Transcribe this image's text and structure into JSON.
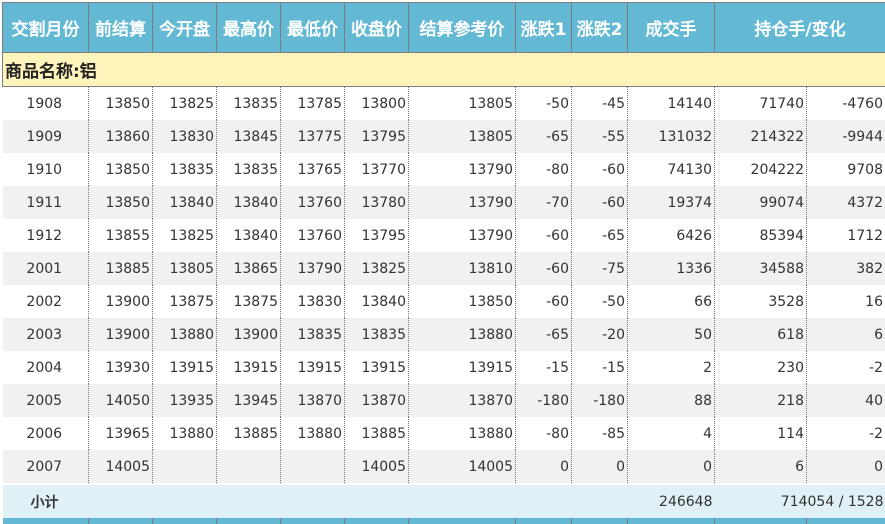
{
  "headers": [
    "交割月份",
    "前结算",
    "今开盘",
    "最高价",
    "最低价",
    "收盘价",
    "结算参考价",
    "涨跌1",
    "涨跌2",
    "成交手",
    "持仓手/变化"
  ],
  "product_label": "商品名称:铝",
  "rows": [
    [
      "1908",
      "13850",
      "13825",
      "13835",
      "13785",
      "13800",
      "13805",
      "-50",
      "-45",
      "14140",
      "71740",
      "-4760"
    ],
    [
      "1909",
      "13860",
      "13830",
      "13845",
      "13775",
      "13795",
      "13805",
      "-65",
      "-55",
      "131032",
      "214322",
      "-9944"
    ],
    [
      "1910",
      "13850",
      "13835",
      "13835",
      "13765",
      "13770",
      "13790",
      "-80",
      "-60",
      "74130",
      "204222",
      "9708"
    ],
    [
      "1911",
      "13850",
      "13840",
      "13840",
      "13760",
      "13780",
      "13790",
      "-70",
      "-60",
      "19374",
      "99074",
      "4372"
    ],
    [
      "1912",
      "13855",
      "13825",
      "13840",
      "13760",
      "13795",
      "13790",
      "-60",
      "-65",
      "6426",
      "85394",
      "1712"
    ],
    [
      "2001",
      "13885",
      "13805",
      "13865",
      "13790",
      "13825",
      "13810",
      "-60",
      "-75",
      "1336",
      "34588",
      "382"
    ],
    [
      "2002",
      "13900",
      "13875",
      "13875",
      "13830",
      "13840",
      "13850",
      "-60",
      "-50",
      "66",
      "3528",
      "16"
    ],
    [
      "2003",
      "13900",
      "13880",
      "13900",
      "13835",
      "13835",
      "13880",
      "-65",
      "-20",
      "50",
      "618",
      "6"
    ],
    [
      "2004",
      "13930",
      "13915",
      "13915",
      "13915",
      "13915",
      "13915",
      "-15",
      "-15",
      "2",
      "230",
      "-2"
    ],
    [
      "2005",
      "14050",
      "13935",
      "13945",
      "13870",
      "13870",
      "13870",
      "-180",
      "-180",
      "88",
      "218",
      "40"
    ],
    [
      "2006",
      "13965",
      "13880",
      "13885",
      "13880",
      "13885",
      "13880",
      "-80",
      "-85",
      "4",
      "114",
      "-2"
    ],
    [
      "2007",
      "14005",
      "",
      "",
      "",
      "14005",
      "14005",
      "0",
      "0",
      "0",
      "6",
      "0"
    ]
  ],
  "subtotal": {
    "label": "小计",
    "volume": "246648",
    "open_interest": "714054 / 1528"
  }
}
